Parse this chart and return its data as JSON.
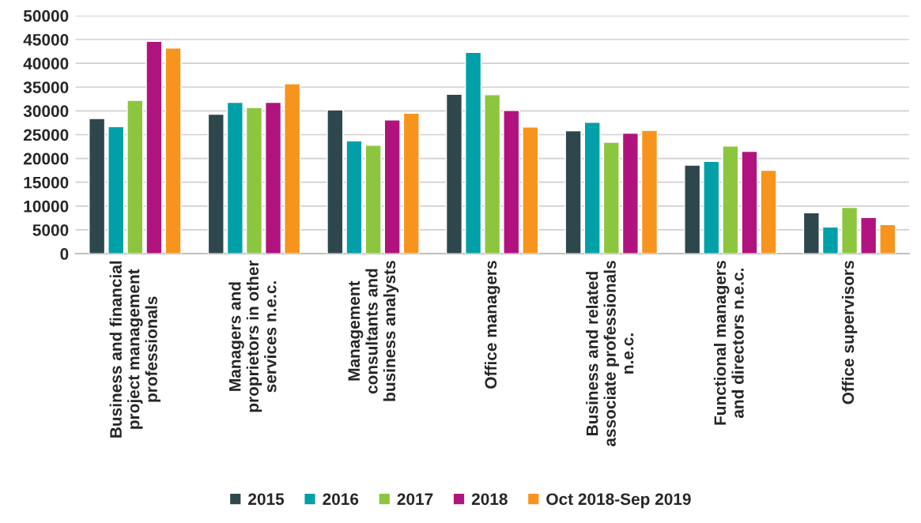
{
  "chart_data": {
    "type": "bar",
    "categories": [
      "Business and financial\nproject management\nprofessionals",
      "Managers and\nproprietors in other\nservices n.e.c.",
      "Management\nconsultants and\nbusiness analysts",
      "Office managers",
      "Business and related\nassociate professionals\nn.e.c.",
      "Functional managers\nand directors n.e.c.",
      "Office supervisors"
    ],
    "series": [
      {
        "name": "2015",
        "color": "#2e474c",
        "values": [
          28400,
          29300,
          30200,
          33500,
          25800,
          18600,
          8600
        ]
      },
      {
        "name": "2016",
        "color": "#00a0a9",
        "values": [
          26700,
          31800,
          23700,
          42300,
          27600,
          19400,
          5600
        ]
      },
      {
        "name": "2017",
        "color": "#8cc63e",
        "values": [
          32200,
          30700,
          22800,
          33400,
          23400,
          22600,
          9700
        ]
      },
      {
        "name": "2018",
        "color": "#b1137e",
        "values": [
          44600,
          31800,
          28100,
          30100,
          25300,
          21500,
          7600
        ]
      },
      {
        "name": "Oct 2018-Sep 2019",
        "color": "#f7941d",
        "values": [
          43200,
          35700,
          29500,
          26600,
          25900,
          17500,
          6100
        ]
      }
    ],
    "ylim": [
      0,
      50000
    ],
    "yticks": [
      0,
      5000,
      10000,
      15000,
      20000,
      25000,
      30000,
      35000,
      40000,
      45000,
      50000
    ],
    "grid": "y",
    "legend": "bottom"
  }
}
